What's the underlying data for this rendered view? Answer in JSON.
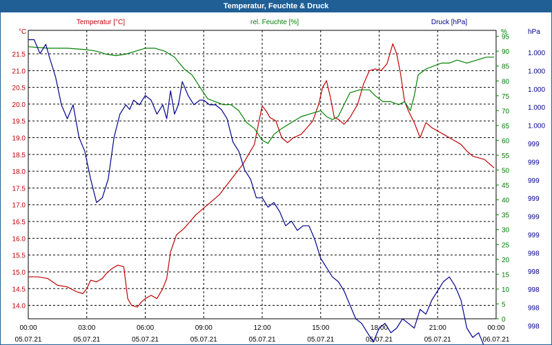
{
  "window": {
    "title": "Temperatur, Feuchte & Druck"
  },
  "colors": {
    "temperature": "#c00000",
    "humidity": "#008000",
    "pressure": "#00008b",
    "grid": "#000000",
    "title_bg": "#1f5f96"
  },
  "chart_data": {
    "type": "line",
    "title": "Temperatur, Feuchte & Druck",
    "x_unit": "hours",
    "x_range": [
      0,
      24
    ],
    "x_ticks": [
      {
        "h": 0,
        "time": "00:00",
        "date": "05.07.21"
      },
      {
        "h": 3,
        "time": "03:00",
        "date": "05.07.21"
      },
      {
        "h": 6,
        "time": "06:00",
        "date": "05.07.21"
      },
      {
        "h": 9,
        "time": "09:00",
        "date": "05.07.21"
      },
      {
        "h": 12,
        "time": "12:00",
        "date": "05.07.21"
      },
      {
        "h": 15,
        "time": "15:00",
        "date": "05.07.21"
      },
      {
        "h": 18,
        "time": "18:00",
        "date": "05.07.21"
      },
      {
        "h": 21,
        "time": "21:00",
        "date": "05.07.21"
      },
      {
        "h": 24,
        "time": "00:00",
        "date": "06.07.21"
      }
    ],
    "left_axis": {
      "label": "Temperatur [°C]",
      "unit": "°C",
      "range": [
        13.6,
        22.2
      ],
      "ticks": [
        14.0,
        14.5,
        15.0,
        15.5,
        16.0,
        16.5,
        17.0,
        17.5,
        18.0,
        18.5,
        19.0,
        19.5,
        20.0,
        20.5,
        21.0,
        21.5
      ],
      "tick_labels": [
        "14.0",
        "14.5",
        "15.0",
        "15.5",
        "16.0",
        "16.5",
        "17.0",
        "17.5",
        "18.0",
        "18.5",
        "19.0",
        "19.5",
        "20.0",
        "20.5",
        "21.0",
        "21.5"
      ]
    },
    "right_axis_1": {
      "label": "rel. Feuchte [%]",
      "unit": "%",
      "range": [
        0,
        97
      ],
      "ticks": [
        0,
        5,
        10,
        15,
        20,
        25,
        30,
        35,
        40,
        45,
        50,
        55,
        60,
        65,
        70,
        75,
        80,
        85,
        90,
        95
      ],
      "tick_labels": [
        "0",
        "5",
        "10",
        "15",
        "20",
        "25",
        "30",
        "35",
        "40",
        "45",
        "50",
        "55",
        "60",
        "65",
        "70",
        "75",
        "80",
        "85",
        "90",
        "95"
      ]
    },
    "right_axis_2": {
      "label": "Druck [hPa]",
      "unit": "hPa",
      "range": [
        998.0,
        1001.1
      ],
      "tick_labels": [
        "1.000",
        "1.000",
        "1.000",
        "1.000",
        "1.000",
        "999",
        "999",
        "999",
        "999",
        "999",
        "999",
        "998",
        "998",
        "998",
        "998",
        "998"
      ]
    },
    "series": [
      {
        "name": "Temperatur",
        "axis": "left",
        "color": "#c00000",
        "x": [
          0,
          0.5,
          1,
          1.5,
          2,
          2.5,
          2.8,
          3,
          3.2,
          3.5,
          3.8,
          4,
          4.3,
          4.6,
          4.9,
          5.1,
          5.3,
          5.6,
          5.8,
          6,
          6.3,
          6.6,
          6.9,
          7.1,
          7.3,
          7.6,
          7.8,
          8,
          8.3,
          8.6,
          9,
          9.4,
          9.8,
          10.2,
          10.6,
          11,
          11.3,
          11.6,
          11.8,
          12,
          12.2,
          12.4,
          12.7,
          13,
          13.3,
          13.6,
          14,
          14.3,
          14.6,
          14.9,
          15.1,
          15.3,
          15.5,
          15.7,
          15.9,
          16.2,
          16.5,
          16.9,
          17.2,
          17.5,
          17.8,
          18.1,
          18.4,
          18.7,
          18.9,
          19.1,
          19.3,
          19.5,
          19.8,
          20.1,
          20.4,
          20.7,
          21,
          21.3,
          21.6,
          21.9,
          22.2,
          22.5,
          22.8,
          23.1,
          23.4,
          23.7,
          23.9
        ],
        "y": [
          14.85,
          14.85,
          14.8,
          14.6,
          14.55,
          14.4,
          14.35,
          14.5,
          14.75,
          14.7,
          14.8,
          14.95,
          15.1,
          15.2,
          15.15,
          14.2,
          14.0,
          13.95,
          14.1,
          14.2,
          14.3,
          14.2,
          14.5,
          14.8,
          15.6,
          16.1,
          16.2,
          16.3,
          16.5,
          16.7,
          16.9,
          17.1,
          17.3,
          17.6,
          17.9,
          18.2,
          18.5,
          18.8,
          19.4,
          19.95,
          19.8,
          19.6,
          19.5,
          19.0,
          18.85,
          19.0,
          19.1,
          19.3,
          19.5,
          20.0,
          20.5,
          20.7,
          20.2,
          19.6,
          19.55,
          19.4,
          19.6,
          20.0,
          20.6,
          21.0,
          21.05,
          21.0,
          21.2,
          21.8,
          21.5,
          20.9,
          20.1,
          19.8,
          19.45,
          19.0,
          19.45,
          19.3,
          19.2,
          19.1,
          19.0,
          18.9,
          18.8,
          18.6,
          18.45,
          18.4,
          18.35,
          18.2,
          18.1
        ]
      },
      {
        "name": "rel. Feuchte",
        "axis": "right_1",
        "color": "#008000",
        "x": [
          0,
          1,
          2,
          3,
          3.5,
          4,
          4.5,
          5,
          5.5,
          6,
          6.5,
          7,
          7.5,
          8,
          8.4,
          8.8,
          9.2,
          9.6,
          10,
          10.4,
          10.8,
          11.2,
          11.6,
          12,
          12.3,
          12.6,
          13,
          13.5,
          14,
          14.5,
          15,
          15.3,
          15.6,
          15.9,
          16.2,
          16.5,
          17,
          17.5,
          17.8,
          18.2,
          18.6,
          19,
          19.3,
          19.6,
          19.8,
          20,
          20.4,
          20.8,
          21.2,
          21.6,
          22,
          22.5,
          23,
          23.5,
          23.9
        ],
        "y": [
          91.5,
          91,
          91,
          90.5,
          90,
          89,
          88.5,
          89,
          90,
          91,
          91,
          90,
          88,
          84,
          82,
          78,
          74,
          73,
          72,
          72,
          70,
          66,
          64,
          60,
          59,
          62,
          64,
          66,
          68,
          69,
          70,
          68,
          67,
          68,
          72,
          76,
          77,
          77,
          75,
          73,
          73,
          72,
          73,
          70,
          75,
          82,
          84,
          85,
          86,
          86,
          87,
          86,
          87,
          88,
          88
        ]
      },
      {
        "name": "Druck",
        "axis": "right_2",
        "color": "#00008b",
        "x": [
          0,
          0.3,
          0.6,
          0.9,
          1.1,
          1.4,
          1.7,
          2,
          2.3,
          2.6,
          2.9,
          3.2,
          3.5,
          3.8,
          4.1,
          4.4,
          4.7,
          5,
          5.2,
          5.4,
          5.7,
          6,
          6.3,
          6.6,
          6.9,
          7.1,
          7.3,
          7.5,
          7.7,
          7.9,
          8.2,
          8.5,
          8.8,
          9,
          9.3,
          9.6,
          9.9,
          10.2,
          10.5,
          10.8,
          11.1,
          11.4,
          11.7,
          12,
          12.3,
          12.6,
          12.9,
          13.2,
          13.5,
          13.8,
          14.1,
          14.4,
          14.7,
          15,
          15.3,
          15.6,
          15.9,
          16.2,
          16.5,
          16.8,
          17.1,
          17.4,
          17.7,
          18,
          18.3,
          18.6,
          18.9,
          19.2,
          19.5,
          19.8,
          20.1,
          20.4,
          20.7,
          21,
          21.3,
          21.6,
          21.9,
          22.2,
          22.5,
          22.8,
          23.1,
          23.4,
          23.7,
          23.9
        ],
        "y": [
          1001.0,
          1001.0,
          1000.85,
          1000.95,
          1000.8,
          1000.6,
          1000.3,
          1000.15,
          1000.3,
          999.95,
          999.8,
          999.5,
          999.25,
          999.3,
          999.5,
          999.95,
          1000.2,
          1000.3,
          1000.25,
          1000.35,
          1000.3,
          1000.4,
          1000.35,
          1000.2,
          1000.3,
          1000.15,
          1000.45,
          1000.2,
          1000.3,
          1000.55,
          1000.4,
          1000.3,
          1000.35,
          1000.35,
          1000.3,
          1000.3,
          1000.25,
          1000.15,
          999.9,
          999.8,
          999.6,
          999.5,
          999.3,
          999.3,
          999.2,
          999.25,
          999.15,
          999.0,
          999.05,
          998.95,
          999.0,
          999.0,
          998.85,
          998.65,
          998.55,
          998.45,
          998.4,
          998.3,
          998.15,
          998.0,
          997.95,
          997.85,
          997.75,
          997.9,
          997.95,
          997.85,
          997.9,
          998.0,
          997.95,
          997.9,
          998.1,
          998.05,
          998.2,
          998.3,
          998.4,
          998.45,
          998.35,
          998.2,
          997.9,
          997.8,
          997.85,
          997.7,
          997.6,
          997.55
        ]
      }
    ]
  }
}
